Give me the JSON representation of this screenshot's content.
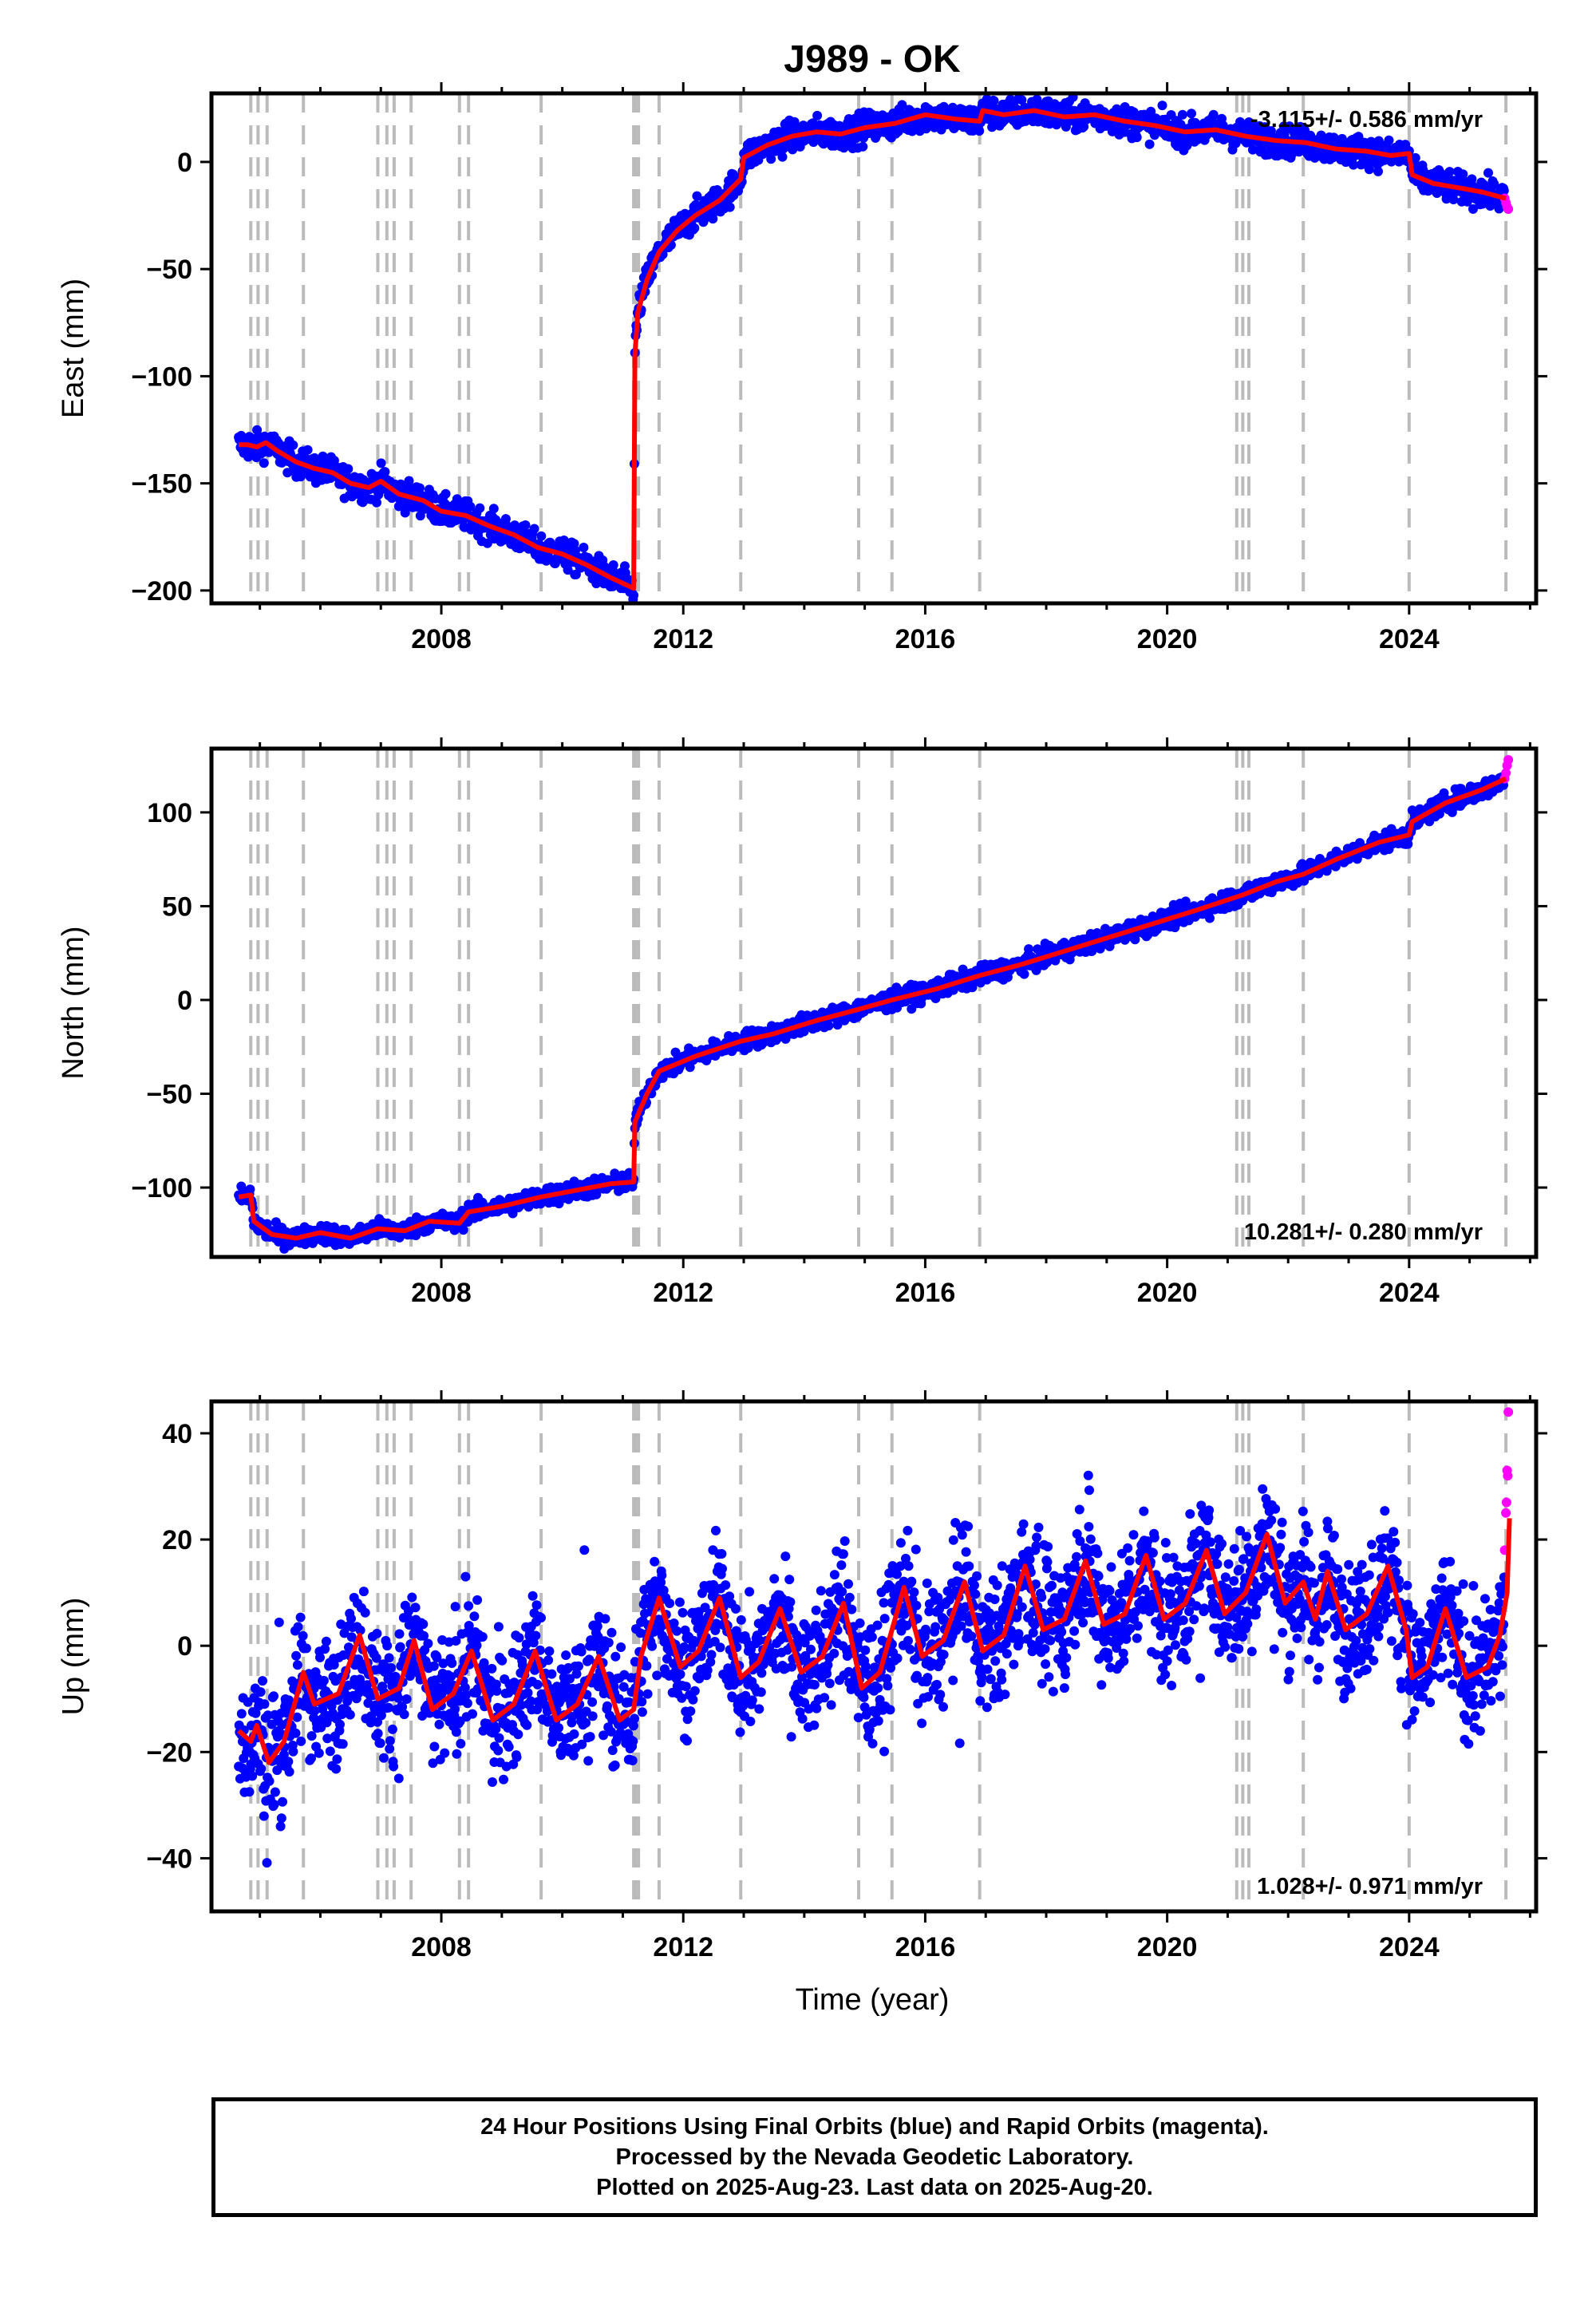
{
  "title": "J989 - OK",
  "footer": {
    "line1": "24 Hour Positions Using Final Orbits (blue) and Rapid Orbits (magenta).",
    "line2": "Processed by the Nevada Geodetic Laboratory.",
    "line3": "Plotted on 2025-Aug-23. Last data on 2025-Aug-20."
  },
  "colors": {
    "final": "#0000ff",
    "rapid": "#ff00ff",
    "model": "#ff0000",
    "events": "#bbbbbb"
  },
  "chart_data": [
    {
      "type": "scatter",
      "component": "east",
      "ylabel": "East (mm)",
      "xlabel": "",
      "rate_label": "-3.115+/- 0.586 mm/yr",
      "xlim": [
        2004.2,
        2026.1
      ],
      "ylim": [
        -206,
        32
      ],
      "yticks": [
        0,
        -50,
        -100,
        -150,
        -200
      ],
      "xticks": [
        2008,
        2012,
        2016,
        2020,
        2024
      ],
      "grid": false,
      "event_lines": [
        2004.85,
        2004.97,
        2005.12,
        2005.72,
        2006.95,
        2007.1,
        2007.22,
        2007.5,
        2008.3,
        2008.45,
        2009.65,
        2011.18,
        2011.22,
        2011.26,
        2011.6,
        2012.95,
        2014.9,
        2015.45,
        2016.9,
        2021.15,
        2021.25,
        2021.35,
        2022.25,
        2024.0,
        2025.6
      ],
      "model": [
        [
          2004.65,
          -132
        ],
        [
          2004.8,
          -132
        ],
        [
          2004.95,
          -133
        ],
        [
          2005.1,
          -131
        ],
        [
          2005.3,
          -135
        ],
        [
          2005.6,
          -140
        ],
        [
          2005.9,
          -143
        ],
        [
          2006.2,
          -145
        ],
        [
          2006.5,
          -150
        ],
        [
          2006.8,
          -152
        ],
        [
          2007.0,
          -149
        ],
        [
          2007.3,
          -155
        ],
        [
          2007.7,
          -158
        ],
        [
          2008.0,
          -163
        ],
        [
          2008.4,
          -165
        ],
        [
          2008.8,
          -170
        ],
        [
          2009.2,
          -174
        ],
        [
          2009.6,
          -180
        ],
        [
          2010.0,
          -183
        ],
        [
          2010.4,
          -188
        ],
        [
          2010.8,
          -194
        ],
        [
          2011.18,
          -199
        ],
        [
          2011.2,
          -90
        ],
        [
          2011.25,
          -70
        ],
        [
          2011.4,
          -55
        ],
        [
          2011.6,
          -42
        ],
        [
          2011.9,
          -32
        ],
        [
          2012.2,
          -25
        ],
        [
          2012.6,
          -18
        ],
        [
          2012.95,
          -8
        ],
        [
          2013.0,
          2
        ],
        [
          2013.4,
          8
        ],
        [
          2013.8,
          12
        ],
        [
          2014.2,
          14
        ],
        [
          2014.6,
          13
        ],
        [
          2015.0,
          16
        ],
        [
          2015.5,
          18
        ],
        [
          2016.0,
          22
        ],
        [
          2016.5,
          20
        ],
        [
          2016.9,
          19
        ],
        [
          2016.95,
          24
        ],
        [
          2017.3,
          22
        ],
        [
          2017.8,
          24
        ],
        [
          2018.3,
          21
        ],
        [
          2018.8,
          22
        ],
        [
          2019.3,
          19
        ],
        [
          2019.8,
          17
        ],
        [
          2020.3,
          14
        ],
        [
          2020.8,
          15
        ],
        [
          2021.3,
          12
        ],
        [
          2021.8,
          10
        ],
        [
          2022.3,
          9
        ],
        [
          2022.8,
          6
        ],
        [
          2023.3,
          5
        ],
        [
          2023.7,
          3
        ],
        [
          2024.0,
          4
        ],
        [
          2024.05,
          -6
        ],
        [
          2024.4,
          -10
        ],
        [
          2024.8,
          -12
        ],
        [
          2025.2,
          -14
        ],
        [
          2025.6,
          -17
        ]
      ],
      "noise": 3.5,
      "rapid": [
        [
          2025.58,
          -17
        ],
        [
          2025.6,
          -19
        ],
        [
          2025.62,
          -21
        ],
        [
          2025.64,
          -22
        ]
      ]
    },
    {
      "type": "scatter",
      "component": "north",
      "ylabel": "North (mm)",
      "xlabel": "",
      "rate_label": "10.281+/- 0.280 mm/yr",
      "xlim": [
        2004.2,
        2026.1
      ],
      "ylim": [
        -137,
        134
      ],
      "yticks": [
        100,
        50,
        0,
        -50,
        -100
      ],
      "xticks": [
        2008,
        2012,
        2016,
        2020,
        2024
      ],
      "grid": false,
      "event_lines": [
        2004.85,
        2004.97,
        2005.12,
        2005.72,
        2006.95,
        2007.1,
        2007.22,
        2007.5,
        2008.3,
        2008.45,
        2009.65,
        2011.18,
        2011.22,
        2011.26,
        2011.6,
        2012.95,
        2014.9,
        2015.45,
        2016.9,
        2021.15,
        2021.25,
        2021.35,
        2022.25,
        2024.0,
        2025.6
      ],
      "model": [
        [
          2004.65,
          -105
        ],
        [
          2004.85,
          -104
        ],
        [
          2004.9,
          -118
        ],
        [
          2005.2,
          -125
        ],
        [
          2005.6,
          -127
        ],
        [
          2006.0,
          -124
        ],
        [
          2006.5,
          -127
        ],
        [
          2006.95,
          -122
        ],
        [
          2007.4,
          -123
        ],
        [
          2007.8,
          -118
        ],
        [
          2008.3,
          -119
        ],
        [
          2008.45,
          -113
        ],
        [
          2009.0,
          -110
        ],
        [
          2009.65,
          -105
        ],
        [
          2010.3,
          -101
        ],
        [
          2010.8,
          -98
        ],
        [
          2011.18,
          -97
        ],
        [
          2011.2,
          -65
        ],
        [
          2011.4,
          -50
        ],
        [
          2011.6,
          -38
        ],
        [
          2012.2,
          -30
        ],
        [
          2012.95,
          -22
        ],
        [
          2013.5,
          -18
        ],
        [
          2014.2,
          -11
        ],
        [
          2014.9,
          -5
        ],
        [
          2015.45,
          0
        ],
        [
          2016.2,
          6
        ],
        [
          2016.9,
          13
        ],
        [
          2017.6,
          19
        ],
        [
          2018.4,
          27
        ],
        [
          2019.2,
          35
        ],
        [
          2019.8,
          41
        ],
        [
          2020.5,
          48
        ],
        [
          2021.25,
          56
        ],
        [
          2021.8,
          63
        ],
        [
          2022.25,
          67
        ],
        [
          2022.8,
          75
        ],
        [
          2023.5,
          84
        ],
        [
          2024.0,
          88
        ],
        [
          2024.05,
          95
        ],
        [
          2024.6,
          105
        ],
        [
          2025.2,
          112
        ],
        [
          2025.6,
          118
        ]
      ],
      "noise": 2.5,
      "rapid": [
        [
          2025.58,
          118
        ],
        [
          2025.6,
          121
        ],
        [
          2025.62,
          125
        ],
        [
          2025.64,
          128
        ]
      ]
    },
    {
      "type": "scatter",
      "component": "up",
      "ylabel": "Up (mm)",
      "xlabel": "Time (year)",
      "rate_label": "1.028+/- 0.971 mm/yr",
      "xlim": [
        2004.2,
        2026.1
      ],
      "ylim": [
        -50,
        46
      ],
      "yticks": [
        40,
        20,
        0,
        -20,
        -40
      ],
      "xticks": [
        2008,
        2012,
        2016,
        2020,
        2024
      ],
      "grid": false,
      "event_lines": [
        2004.85,
        2004.97,
        2005.12,
        2005.72,
        2006.95,
        2007.1,
        2007.22,
        2007.5,
        2008.3,
        2008.45,
        2009.65,
        2011.18,
        2011.22,
        2011.26,
        2011.6,
        2012.95,
        2014.9,
        2015.45,
        2016.9,
        2021.15,
        2021.25,
        2021.35,
        2022.25,
        2024.0,
        2025.6
      ],
      "model": [
        [
          2004.65,
          -16
        ],
        [
          2004.85,
          -18
        ],
        [
          2004.95,
          -15
        ],
        [
          2005.15,
          -22
        ],
        [
          2005.4,
          -18
        ],
        [
          2005.72,
          -5
        ],
        [
          2005.9,
          -11
        ],
        [
          2006.3,
          -9
        ],
        [
          2006.65,
          2
        ],
        [
          2006.95,
          -10
        ],
        [
          2007.3,
          -8
        ],
        [
          2007.55,
          1
        ],
        [
          2007.85,
          -12
        ],
        [
          2008.2,
          -9
        ],
        [
          2008.5,
          -1
        ],
        [
          2008.85,
          -14
        ],
        [
          2009.2,
          -11
        ],
        [
          2009.55,
          -1
        ],
        [
          2009.9,
          -14
        ],
        [
          2010.25,
          -11
        ],
        [
          2010.6,
          -2
        ],
        [
          2010.95,
          -14
        ],
        [
          2011.18,
          -12
        ],
        [
          2011.3,
          -2
        ],
        [
          2011.6,
          9
        ],
        [
          2011.95,
          -4
        ],
        [
          2012.25,
          -1
        ],
        [
          2012.6,
          9
        ],
        [
          2012.95,
          -6
        ],
        [
          2013.25,
          -3
        ],
        [
          2013.6,
          7
        ],
        [
          2013.95,
          -5
        ],
        [
          2014.3,
          -2
        ],
        [
          2014.65,
          8
        ],
        [
          2014.95,
          -8
        ],
        [
          2015.25,
          -5
        ],
        [
          2015.65,
          11
        ],
        [
          2015.95,
          -2
        ],
        [
          2016.3,
          1
        ],
        [
          2016.65,
          12
        ],
        [
          2016.95,
          -1
        ],
        [
          2017.3,
          2
        ],
        [
          2017.65,
          15
        ],
        [
          2017.95,
          3
        ],
        [
          2018.3,
          5
        ],
        [
          2018.65,
          16
        ],
        [
          2018.95,
          4
        ],
        [
          2019.3,
          6
        ],
        [
          2019.65,
          17
        ],
        [
          2019.95,
          5
        ],
        [
          2020.3,
          8
        ],
        [
          2020.65,
          18
        ],
        [
          2020.95,
          6
        ],
        [
          2021.3,
          10
        ],
        [
          2021.65,
          21
        ],
        [
          2021.95,
          8
        ],
        [
          2022.25,
          12
        ],
        [
          2022.45,
          5
        ],
        [
          2022.65,
          14
        ],
        [
          2022.95,
          3
        ],
        [
          2023.3,
          6
        ],
        [
          2023.65,
          15
        ],
        [
          2023.95,
          3
        ],
        [
          2024.05,
          -6
        ],
        [
          2024.3,
          -4
        ],
        [
          2024.6,
          7
        ],
        [
          2024.95,
          -6
        ],
        [
          2025.3,
          -4
        ],
        [
          2025.5,
          2
        ],
        [
          2025.62,
          10
        ],
        [
          2025.66,
          24
        ]
      ],
      "noise": 6,
      "rapid": [
        [
          2025.58,
          18
        ],
        [
          2025.6,
          25
        ],
        [
          2025.61,
          27
        ],
        [
          2025.62,
          33
        ],
        [
          2025.63,
          32
        ],
        [
          2025.64,
          44
        ]
      ]
    }
  ]
}
